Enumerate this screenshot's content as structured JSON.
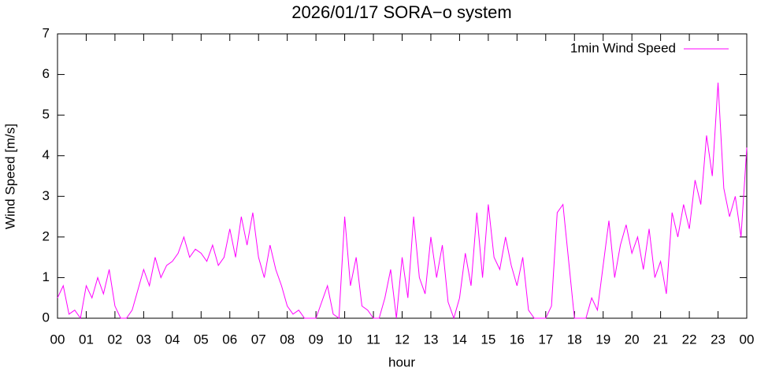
{
  "chart_data": {
    "type": "line",
    "title": "2026/01/17 SORA−o system",
    "xlabel": "hour",
    "ylabel": "Wind Speed [m/s]",
    "legend": "top-right",
    "x": [
      0,
      0.2,
      0.4,
      0.6,
      0.8,
      1,
      1.2,
      1.4,
      1.6,
      1.8,
      2,
      2.2,
      2.4,
      2.6,
      2.8,
      3,
      3.2,
      3.4,
      3.6,
      3.8,
      4,
      4.2,
      4.4,
      4.6,
      4.8,
      5,
      5.2,
      5.4,
      5.6,
      5.8,
      6,
      6.2,
      6.4,
      6.6,
      6.8,
      7,
      7.2,
      7.4,
      7.6,
      7.8,
      8,
      8.2,
      8.4,
      8.6,
      8.8,
      9,
      9.2,
      9.4,
      9.6,
      9.8,
      10,
      10.2,
      10.4,
      10.6,
      10.8,
      11,
      11.2,
      11.4,
      11.6,
      11.8,
      12,
      12.2,
      12.4,
      12.6,
      12.8,
      13,
      13.2,
      13.4,
      13.6,
      13.8,
      14,
      14.2,
      14.4,
      14.6,
      14.8,
      15,
      15.2,
      15.4,
      15.6,
      15.8,
      16,
      16.2,
      16.4,
      16.6,
      16.8,
      17,
      17.2,
      17.4,
      17.6,
      17.8,
      18,
      18.2,
      18.4,
      18.6,
      18.8,
      19,
      19.2,
      19.4,
      19.6,
      19.8,
      20,
      20.2,
      20.4,
      20.6,
      20.8,
      21,
      21.2,
      21.4,
      21.6,
      21.8,
      22,
      22.2,
      22.4,
      22.6,
      22.8,
      23,
      23.2,
      23.4,
      23.6,
      23.8,
      24
    ],
    "series": [
      {
        "name": "1min Wind Speed",
        "color": "#ff00ff",
        "values": [
          0.5,
          0.8,
          0.1,
          0.2,
          0,
          0.8,
          0.5,
          1.0,
          0.6,
          1.2,
          0.3,
          0,
          0,
          0.2,
          0.7,
          1.2,
          0.8,
          1.5,
          1.0,
          1.3,
          1.4,
          1.6,
          2.0,
          1.5,
          1.7,
          1.6,
          1.4,
          1.8,
          1.3,
          1.5,
          2.2,
          1.5,
          2.5,
          1.8,
          2.6,
          1.5,
          1.0,
          1.8,
          1.2,
          0.8,
          0.3,
          0.1,
          0.2,
          0,
          0,
          0,
          0.4,
          0.8,
          0.1,
          0,
          2.5,
          0.8,
          1.5,
          0.3,
          0.2,
          0,
          0,
          0.5,
          1.2,
          0,
          1.5,
          0.5,
          2.5,
          1.0,
          0.6,
          2.0,
          1.0,
          1.8,
          0.4,
          0,
          0.5,
          1.6,
          0.8,
          2.6,
          1.0,
          2.8,
          1.5,
          1.2,
          2.0,
          1.3,
          0.8,
          1.5,
          0.2,
          0,
          0,
          0,
          0.3,
          2.6,
          2.8,
          1.4,
          0,
          0,
          0,
          0.5,
          0.2,
          1.3,
          2.4,
          1.0,
          1.8,
          2.3,
          1.6,
          2.0,
          1.2,
          2.2,
          1.0,
          1.4,
          0.6,
          2.6,
          2.0,
          2.8,
          2.2,
          3.4,
          2.8,
          4.5,
          3.5,
          5.8,
          3.2,
          2.5,
          3.0,
          2.0,
          4.2
        ]
      }
    ],
    "xlim": [
      0,
      24
    ],
    "xticks": [
      {
        "value": 0,
        "label": "00"
      },
      {
        "value": 1,
        "label": "01"
      },
      {
        "value": 2,
        "label": "02"
      },
      {
        "value": 3,
        "label": "03"
      },
      {
        "value": 4,
        "label": "04"
      },
      {
        "value": 5,
        "label": "05"
      },
      {
        "value": 6,
        "label": "06"
      },
      {
        "value": 7,
        "label": "07"
      },
      {
        "value": 8,
        "label": "08"
      },
      {
        "value": 9,
        "label": "09"
      },
      {
        "value": 10,
        "label": "10"
      },
      {
        "value": 11,
        "label": "11"
      },
      {
        "value": 12,
        "label": "12"
      },
      {
        "value": 13,
        "label": "13"
      },
      {
        "value": 14,
        "label": "14"
      },
      {
        "value": 15,
        "label": "15"
      },
      {
        "value": 16,
        "label": "16"
      },
      {
        "value": 17,
        "label": "17"
      },
      {
        "value": 18,
        "label": "18"
      },
      {
        "value": 19,
        "label": "19"
      },
      {
        "value": 20,
        "label": "20"
      },
      {
        "value": 21,
        "label": "21"
      },
      {
        "value": 22,
        "label": "22"
      },
      {
        "value": 23,
        "label": "23"
      },
      {
        "value": 24,
        "label": "00"
      }
    ],
    "ylim": [
      0,
      7
    ],
    "yticks": [
      0,
      1,
      2,
      3,
      4,
      5,
      6,
      7
    ],
    "grid": false
  }
}
